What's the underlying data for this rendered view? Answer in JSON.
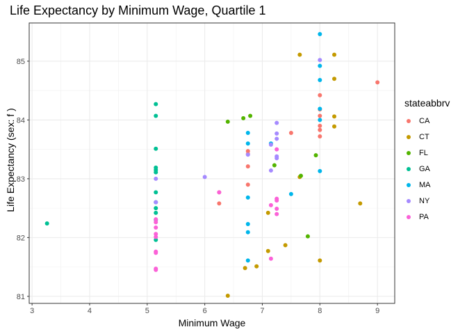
{
  "chart_data": {
    "type": "scatter",
    "title": "Life Expectancy by Minimum Wage, Quartile 1",
    "xlabel": "Minimum Wage",
    "ylabel": "Life Expectancy (sex: f )",
    "xlim": [
      2.95,
      9.3
    ],
    "ylim": [
      80.88,
      85.65
    ],
    "x_ticks": [
      3,
      4,
      5,
      6,
      7,
      8,
      9
    ],
    "y_ticks": [
      81,
      82,
      83,
      84,
      85
    ],
    "grid": true,
    "legend_title": "stateabbrv",
    "legend_position": "right",
    "series": [
      {
        "name": "CA",
        "color": "#F8766D",
        "points": [
          [
            6.25,
            82.58
          ],
          [
            6.25,
            82.77
          ],
          [
            6.75,
            83.47
          ],
          [
            6.75,
            83.42
          ],
          [
            6.75,
            83.21
          ],
          [
            6.75,
            82.9
          ],
          [
            7.5,
            83.78
          ],
          [
            8,
            84.42
          ],
          [
            8,
            84.18
          ],
          [
            8,
            84.07
          ],
          [
            8,
            83.9
          ],
          [
            8,
            83.83
          ],
          [
            8,
            83.72
          ],
          [
            9,
            84.64
          ]
        ]
      },
      {
        "name": "CT",
        "color": "#C49A00",
        "points": [
          [
            6.4,
            81.01
          ],
          [
            6.7,
            81.48
          ],
          [
            6.9,
            81.51
          ],
          [
            7.1,
            81.77
          ],
          [
            7.1,
            82.42
          ],
          [
            7.4,
            81.87
          ],
          [
            7.65,
            83.03
          ],
          [
            7.65,
            85.11
          ],
          [
            8,
            81.61
          ],
          [
            8.25,
            85.11
          ],
          [
            8.25,
            84.7
          ],
          [
            8.25,
            84.06
          ],
          [
            8.25,
            83.89
          ],
          [
            8.7,
            82.58
          ]
        ]
      },
      {
        "name": "FL",
        "color": "#53B400",
        "points": [
          [
            6.4,
            83.97
          ],
          [
            6.67,
            84.03
          ],
          [
            6.79,
            84.07
          ],
          [
            7.21,
            83.23
          ],
          [
            7.67,
            83.05
          ],
          [
            7.79,
            82.02
          ],
          [
            7.93,
            83.4
          ]
        ]
      },
      {
        "name": "GA",
        "color": "#00C094",
        "points": [
          [
            3.26,
            82.24
          ],
          [
            5.15,
            84.27
          ],
          [
            5.15,
            84.07
          ],
          [
            5.15,
            83.51
          ],
          [
            5.15,
            83.19
          ],
          [
            5.15,
            83.15
          ],
          [
            5.15,
            83.11
          ],
          [
            5.15,
            82.77
          ],
          [
            5.15,
            82.6
          ],
          [
            5.15,
            82.5
          ],
          [
            5.15,
            82.42
          ],
          [
            5.15,
            82.3
          ],
          [
            5.15,
            81.96
          ]
        ]
      },
      {
        "name": "MA",
        "color": "#00B6EB",
        "points": [
          [
            6.75,
            83.78
          ],
          [
            6.75,
            83.6
          ],
          [
            6.75,
            82.68
          ],
          [
            6.75,
            82.23
          ],
          [
            6.75,
            82.09
          ],
          [
            6.75,
            81.61
          ],
          [
            7.15,
            83.6
          ],
          [
            7.5,
            82.74
          ],
          [
            8,
            85.46
          ],
          [
            8,
            84.92
          ],
          [
            8,
            84.68
          ],
          [
            8,
            84.19
          ],
          [
            8,
            84.0
          ],
          [
            8,
            83.13
          ]
        ]
      },
      {
        "name": "NY",
        "color": "#A58AFF",
        "points": [
          [
            5.15,
            83.0
          ],
          [
            5.15,
            82.6
          ],
          [
            6.0,
            83.03
          ],
          [
            6.75,
            83.41
          ],
          [
            7.15,
            83.58
          ],
          [
            7.15,
            83.14
          ],
          [
            7.25,
            83.95
          ],
          [
            7.25,
            83.77
          ],
          [
            7.25,
            83.68
          ],
          [
            7.25,
            83.38
          ],
          [
            7.25,
            83.35
          ],
          [
            8,
            85.02
          ]
        ]
      },
      {
        "name": "PA",
        "color": "#FB61D7",
        "points": [
          [
            5.15,
            82.31
          ],
          [
            5.15,
            82.26
          ],
          [
            5.15,
            82.17
          ],
          [
            5.15,
            82.06
          ],
          [
            5.15,
            82.01
          ],
          [
            5.15,
            81.76
          ],
          [
            5.15,
            81.74
          ],
          [
            5.15,
            81.47
          ],
          [
            5.15,
            81.45
          ],
          [
            6.25,
            82.77
          ],
          [
            7.15,
            82.55
          ],
          [
            7.15,
            81.64
          ],
          [
            7.25,
            83.5
          ],
          [
            7.25,
            82.66
          ],
          [
            7.25,
            82.63
          ],
          [
            7.25,
            82.49
          ],
          [
            7.25,
            82.4
          ]
        ]
      }
    ]
  }
}
